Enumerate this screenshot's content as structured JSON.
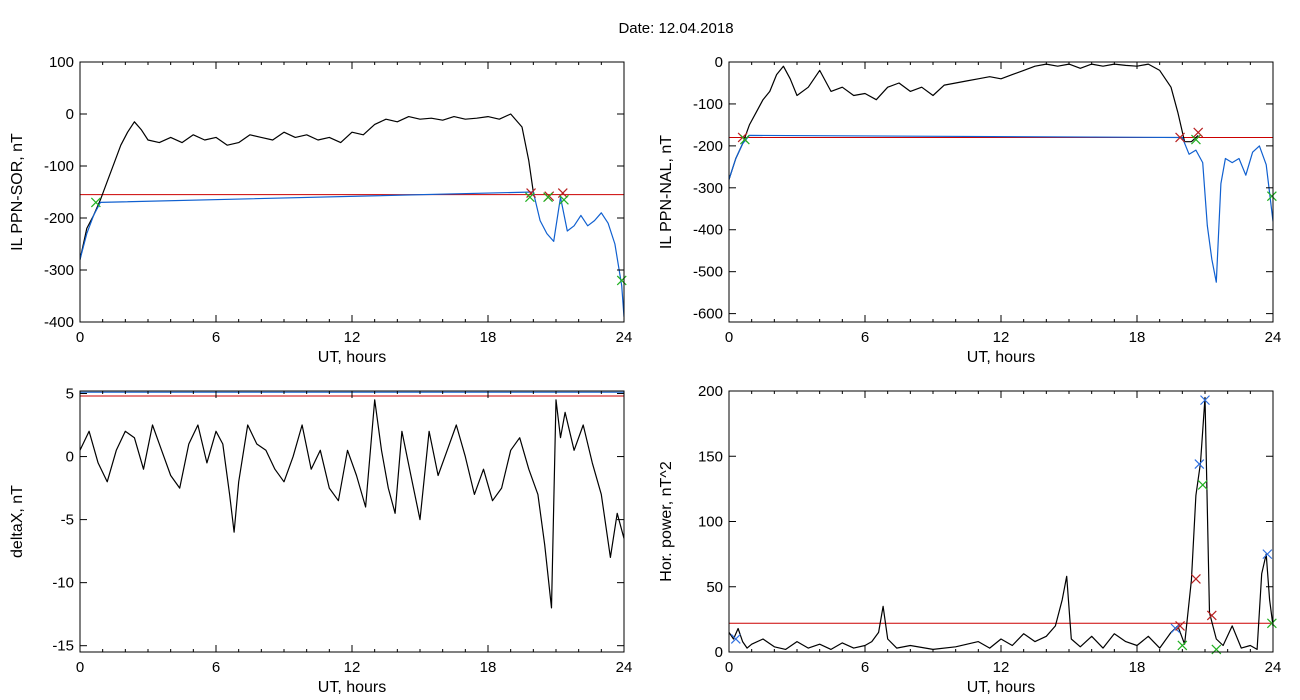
{
  "title": "Date:  12.04.2018",
  "colors": {
    "trace": "#000000",
    "threshold": "#cc0000",
    "substorm": "#1060d0",
    "marker_red": "#b82020",
    "marker_green": "#20b020",
    "marker_blue": "#3070e0"
  },
  "chart_data": [
    {
      "type": "line",
      "id": "sor",
      "xlabel": "UT, hours",
      "ylabel": "IL PPN-SOR, nT",
      "xlim": [
        0,
        24
      ],
      "ylim": [
        -400,
        100
      ],
      "xticks": [
        0,
        6,
        12,
        18,
        24
      ],
      "yticks": [
        -400,
        -300,
        -200,
        -100,
        0,
        100
      ],
      "xtick_labels": [
        "0",
        "6",
        "12",
        "18",
        "24"
      ],
      "ytick_labels": [
        "-400",
        "-300",
        "-200",
        "-100",
        "0",
        "100"
      ],
      "threshold": -155,
      "series": [
        {
          "style": "black",
          "x": [
            0.0,
            0.3,
            0.6,
            0.9,
            1.2,
            1.5,
            1.8,
            2.1,
            2.4,
            2.7,
            3.0,
            3.5,
            4.0,
            4.5,
            5.0,
            5.5,
            6.0,
            6.5,
            7.0,
            7.5,
            8.0,
            8.5,
            9.0,
            9.5,
            10.0,
            10.5,
            11.0,
            11.5,
            12.0,
            12.5,
            13.0,
            13.5,
            14.0,
            14.5,
            15.0,
            15.5,
            16.0,
            16.5,
            17.0,
            17.5,
            18.0,
            18.5,
            19.0,
            19.5,
            19.8,
            20.0
          ],
          "y": [
            -280,
            -220,
            -195,
            -165,
            -130,
            -95,
            -60,
            -35,
            -15,
            -30,
            -50,
            -55,
            -45,
            -55,
            -40,
            -50,
            -45,
            -60,
            -55,
            -40,
            -45,
            -50,
            -35,
            -45,
            -40,
            -50,
            -45,
            -55,
            -35,
            -40,
            -20,
            -10,
            -15,
            -5,
            -10,
            -8,
            -12,
            -5,
            -10,
            -8,
            -5,
            -10,
            0,
            -25,
            -90,
            -150
          ]
        },
        {
          "style": "blue",
          "x": [
            0.0,
            0.3,
            0.6,
            0.9,
            20.0,
            20.3,
            20.6,
            20.9,
            21.2,
            21.5,
            21.8,
            22.1,
            22.4,
            22.7,
            23.0,
            23.3,
            23.6,
            23.9,
            24.0
          ],
          "y": [
            -280,
            -230,
            -195,
            -170,
            -150,
            -205,
            -230,
            -245,
            -160,
            -225,
            -215,
            -195,
            -215,
            -205,
            -190,
            -210,
            -250,
            -330,
            -390
          ]
        }
      ],
      "markers": [
        {
          "x": 0.7,
          "y": -170,
          "color": "green"
        },
        {
          "x": 19.9,
          "y": -152,
          "color": "red"
        },
        {
          "x": 20.7,
          "y": -158,
          "color": "red"
        },
        {
          "x": 21.3,
          "y": -152,
          "color": "red"
        },
        {
          "x": 19.85,
          "y": -160,
          "color": "green"
        },
        {
          "x": 20.65,
          "y": -160,
          "color": "green"
        },
        {
          "x": 21.35,
          "y": -165,
          "color": "green"
        },
        {
          "x": 23.9,
          "y": -320,
          "color": "green"
        }
      ]
    },
    {
      "type": "line",
      "id": "nal",
      "xlabel": "UT, hours",
      "ylabel": "IL PPN-NAL, nT",
      "xlim": [
        0,
        24
      ],
      "ylim": [
        -620,
        0
      ],
      "xticks": [
        0,
        6,
        12,
        18,
        24
      ],
      "yticks": [
        -600,
        -500,
        -400,
        -300,
        -200,
        -100,
        0
      ],
      "xtick_labels": [
        "0",
        "6",
        "12",
        "18",
        "24"
      ],
      "ytick_labels": [
        "-600",
        "-500",
        "-400",
        "-300",
        "-200",
        "-100",
        "0"
      ],
      "threshold": -180,
      "series": [
        {
          "style": "black",
          "x": [
            0.0,
            0.3,
            0.6,
            0.9,
            1.2,
            1.5,
            1.8,
            2.1,
            2.4,
            2.7,
            3.0,
            3.5,
            4.0,
            4.5,
            5.0,
            5.5,
            6.0,
            6.5,
            7.0,
            7.5,
            8.0,
            8.5,
            9.0,
            9.5,
            10.0,
            10.5,
            11.0,
            11.5,
            12.0,
            12.5,
            13.0,
            13.5,
            14.0,
            14.5,
            15.0,
            15.5,
            16.0,
            16.5,
            17.0,
            17.5,
            18.0,
            18.5,
            19.0,
            19.5,
            19.8,
            20.1,
            20.4,
            20.7
          ],
          "y": [
            -280,
            -230,
            -195,
            -150,
            -120,
            -90,
            -70,
            -30,
            -10,
            -40,
            -80,
            -60,
            -20,
            -70,
            -60,
            -80,
            -75,
            -90,
            -60,
            -50,
            -70,
            -60,
            -80,
            -55,
            -50,
            -45,
            -40,
            -35,
            -40,
            -30,
            -20,
            -10,
            -5,
            -10,
            -5,
            -15,
            -5,
            -10,
            -5,
            -8,
            -10,
            -5,
            -20,
            -60,
            -120,
            -190,
            -190,
            -175
          ]
        },
        {
          "style": "blue",
          "x": [
            0.0,
            0.3,
            0.6,
            0.9,
            20.0,
            20.3,
            20.6,
            20.9,
            21.1,
            21.3,
            21.5,
            21.7,
            21.9,
            22.2,
            22.5,
            22.8,
            23.1,
            23.4,
            23.7,
            24.0
          ],
          "y": [
            -280,
            -230,
            -195,
            -175,
            -180,
            -220,
            -210,
            -240,
            -390,
            -470,
            -525,
            -290,
            -230,
            -240,
            -230,
            -270,
            -215,
            -200,
            -245,
            -380
          ]
        }
      ],
      "markers": [
        {
          "x": 0.6,
          "y": -180,
          "color": "red"
        },
        {
          "x": 0.7,
          "y": -185,
          "color": "green"
        },
        {
          "x": 19.9,
          "y": -180,
          "color": "red"
        },
        {
          "x": 20.7,
          "y": -168,
          "color": "red"
        },
        {
          "x": 20.6,
          "y": -185,
          "color": "green"
        },
        {
          "x": 23.95,
          "y": -320,
          "color": "green"
        }
      ]
    },
    {
      "type": "line",
      "id": "deltax",
      "xlabel": "UT, hours",
      "ylabel": "deltaX, nT",
      "xlim": [
        0,
        24
      ],
      "ylim": [
        -15.5,
        5.2
      ],
      "xticks": [
        0,
        6,
        12,
        18,
        24
      ],
      "yticks": [
        -15,
        -10,
        -5,
        0,
        5
      ],
      "xtick_labels": [
        "0",
        "6",
        "12",
        "18",
        "24"
      ],
      "ytick_labels": [
        "-15",
        "-10",
        "-5",
        "0",
        "5"
      ],
      "threshold": 4.8,
      "blue_line": 5.1,
      "series": [
        {
          "style": "black",
          "x": [
            0.0,
            0.4,
            0.8,
            1.2,
            1.6,
            2.0,
            2.4,
            2.8,
            3.2,
            3.6,
            4.0,
            4.4,
            4.8,
            5.2,
            5.6,
            6.0,
            6.3,
            6.6,
            6.8,
            7.0,
            7.4,
            7.8,
            8.2,
            8.6,
            9.0,
            9.4,
            9.8,
            10.2,
            10.6,
            11.0,
            11.4,
            11.8,
            12.2,
            12.6,
            13.0,
            13.3,
            13.6,
            13.9,
            14.2,
            14.6,
            15.0,
            15.4,
            15.8,
            16.2,
            16.6,
            17.0,
            17.4,
            17.8,
            18.2,
            18.6,
            19.0,
            19.4,
            19.8,
            20.2,
            20.5,
            20.8,
            21.0,
            21.2,
            21.4,
            21.8,
            22.2,
            22.6,
            23.0,
            23.4,
            23.7,
            24.0
          ],
          "y": [
            0.5,
            2.0,
            -0.5,
            -2.0,
            0.5,
            2.0,
            1.5,
            -1.0,
            2.5,
            0.5,
            -1.5,
            -2.5,
            1.0,
            2.5,
            -0.5,
            2.0,
            1.0,
            -3.0,
            -6.0,
            -2.0,
            2.5,
            1.0,
            0.5,
            -1.0,
            -2.0,
            0.0,
            2.5,
            -1.0,
            0.5,
            -2.5,
            -3.5,
            0.5,
            -1.5,
            -4.0,
            4.5,
            0.5,
            -2.5,
            -4.5,
            2.0,
            -1.5,
            -5.0,
            2.0,
            -1.5,
            0.5,
            2.5,
            0.0,
            -3.0,
            -1.0,
            -3.5,
            -2.5,
            0.5,
            1.5,
            -1.0,
            -3.0,
            -7.0,
            -12.0,
            4.5,
            1.5,
            3.5,
            0.5,
            2.5,
            -0.5,
            -3.0,
            -8.0,
            -4.5,
            -6.5
          ]
        }
      ],
      "markers": []
    },
    {
      "type": "line",
      "id": "power",
      "xlabel": "UT, hours",
      "ylabel": "Hor. power, nT^2",
      "xlim": [
        0,
        24
      ],
      "ylim": [
        0,
        200
      ],
      "xticks": [
        0,
        6,
        12,
        18,
        24
      ],
      "yticks": [
        0,
        50,
        100,
        150,
        200
      ],
      "xtick_labels": [
        "0",
        "6",
        "12",
        "18",
        "24"
      ],
      "ytick_labels": [
        "0",
        "50",
        "100",
        "150",
        "200"
      ],
      "threshold": 22,
      "series": [
        {
          "style": "black",
          "x": [
            0.0,
            0.2,
            0.4,
            0.6,
            0.8,
            1.0,
            1.5,
            2.0,
            2.5,
            3.0,
            3.5,
            4.0,
            4.5,
            5.0,
            5.5,
            6.0,
            6.3,
            6.6,
            6.8,
            7.0,
            7.4,
            8.0,
            9.0,
            10.0,
            10.5,
            11.0,
            11.5,
            12.0,
            12.5,
            13.0,
            13.5,
            14.0,
            14.4,
            14.7,
            14.9,
            15.1,
            15.5,
            16.0,
            16.5,
            17.0,
            17.5,
            18.0,
            18.5,
            19.0,
            19.5,
            19.8,
            20.1,
            20.4,
            20.6,
            20.8,
            21.0,
            21.2,
            21.5,
            21.8,
            22.2,
            22.6,
            23.0,
            23.3,
            23.5,
            23.7,
            23.85,
            24.0
          ],
          "y": [
            15,
            10,
            18,
            8,
            3,
            6,
            10,
            4,
            2,
            8,
            3,
            6,
            2,
            7,
            3,
            5,
            8,
            15,
            35,
            10,
            3,
            5,
            2,
            4,
            6,
            8,
            3,
            10,
            5,
            14,
            8,
            12,
            20,
            40,
            58,
            10,
            4,
            12,
            3,
            14,
            8,
            5,
            12,
            3,
            15,
            20,
            6,
            55,
            120,
            145,
            195,
            30,
            10,
            5,
            20,
            3,
            5,
            2,
            60,
            75,
            40,
            20
          ]
        }
      ],
      "markers": [
        {
          "x": 0.3,
          "y": 10,
          "color": "blue"
        },
        {
          "x": 19.7,
          "y": 18,
          "color": "blue"
        },
        {
          "x": 19.9,
          "y": 20,
          "color": "red"
        },
        {
          "x": 20.6,
          "y": 56,
          "color": "red"
        },
        {
          "x": 20.75,
          "y": 144,
          "color": "blue"
        },
        {
          "x": 21.0,
          "y": 193,
          "color": "blue"
        },
        {
          "x": 21.3,
          "y": 28,
          "color": "red"
        },
        {
          "x": 20.9,
          "y": 128,
          "color": "green"
        },
        {
          "x": 21.5,
          "y": 2,
          "color": "green"
        },
        {
          "x": 23.75,
          "y": 75,
          "color": "blue"
        },
        {
          "x": 23.95,
          "y": 22,
          "color": "green"
        },
        {
          "x": 20.0,
          "y": 5,
          "color": "green"
        }
      ]
    }
  ]
}
